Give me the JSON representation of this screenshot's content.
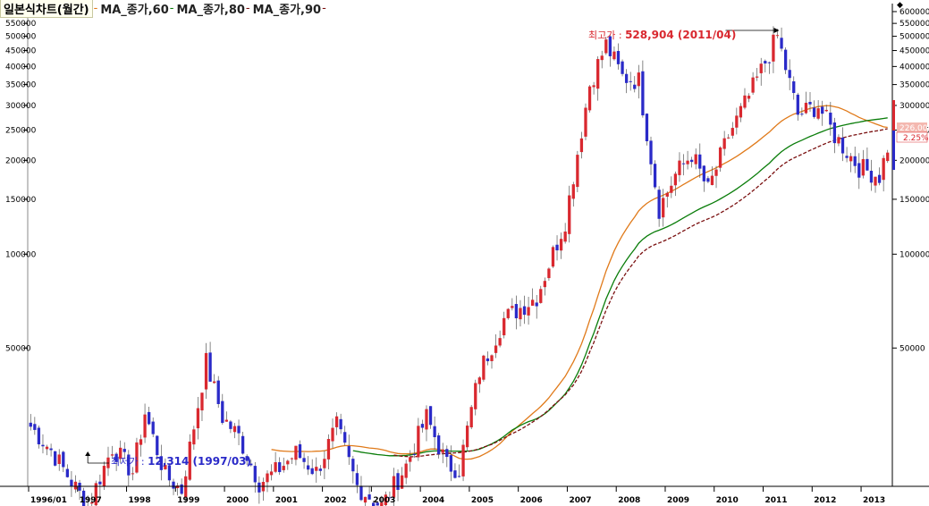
{
  "header": {
    "title": "일본식차트(월간)",
    "ma_labels": [
      "MA_종가,60",
      "MA_종가,80",
      "MA_종가,90"
    ],
    "ma_colors": [
      "#e07a1a",
      "#0a7d0a",
      "#7a1010"
    ]
  },
  "annotations": {
    "high_label": "최고가 : ",
    "high_value": "528,904 (2011/04)",
    "low_label": "최저가 : ",
    "low_value": "12,314 (1997/03)"
  },
  "price_tags": {
    "current": "226,000",
    "change": "2.25%"
  },
  "colors": {
    "up": "#d9282f",
    "down": "#2a2ac8",
    "ma60": "#e07a1a",
    "ma80": "#0a7d0a",
    "ma90": "#7a1010",
    "axis": "#000000",
    "high_text": "#d9282f",
    "low_text": "#2a2ac8"
  },
  "chart_data": {
    "type": "candlestick",
    "period": "monthly",
    "y_scale": "log",
    "ylim": [
      18000,
      620000
    ],
    "y_ticks": [
      50000,
      100000,
      150000,
      200000,
      250000,
      300000,
      350000,
      400000,
      450000,
      500000,
      550000,
      600000
    ],
    "y_tick_labels": [
      "50000",
      "100000",
      "150000",
      "200000",
      "250000",
      "300000",
      "350000",
      "400000",
      "450000",
      "500000",
      "550000",
      "600000"
    ],
    "x_tick_labels": [
      "1996/01",
      "1997",
      "1998",
      "1999",
      "2000",
      "2001",
      "2002",
      "2003",
      "2004",
      "2005",
      "2006",
      "2007",
      "2008",
      "2009",
      "2010",
      "2011",
      "2012",
      "2013"
    ],
    "start": "1996/01",
    "months": 211,
    "anchors": [
      {
        "date": "1996/01",
        "close": 28000
      },
      {
        "date": "1996/06",
        "close": 23500
      },
      {
        "date": "1997/03",
        "close": 15500
      },
      {
        "date": "1997/09",
        "close": 24000
      },
      {
        "date": "1998/02",
        "close": 20000
      },
      {
        "date": "1998/05",
        "close": 31000
      },
      {
        "date": "1998/10",
        "close": 19500
      },
      {
        "date": "1999/02",
        "close": 17500
      },
      {
        "date": "1999/08",
        "close": 45000
      },
      {
        "date": "1999/12",
        "close": 30000
      },
      {
        "date": "2000/04",
        "close": 26000
      },
      {
        "date": "2000/09",
        "close": 18500
      },
      {
        "date": "2001/01",
        "close": 20000
      },
      {
        "date": "2001/06",
        "close": 23000
      },
      {
        "date": "2001/11",
        "close": 20000
      },
      {
        "date": "2002/04",
        "close": 28000
      },
      {
        "date": "2002/09",
        "close": 18000
      },
      {
        "date": "2003/03",
        "close": 15500
      },
      {
        "date": "2003/09",
        "close": 21000
      },
      {
        "date": "2004/02",
        "close": 30000
      },
      {
        "date": "2004/07",
        "close": 21000
      },
      {
        "date": "2004/10",
        "close": 20500
      },
      {
        "date": "2005/03",
        "close": 42000
      },
      {
        "date": "2005/09",
        "close": 62000
      },
      {
        "date": "2006/05",
        "close": 73000
      },
      {
        "date": "2006/12",
        "close": 128000
      },
      {
        "date": "2007/06",
        "close": 350000
      },
      {
        "date": "2007/10",
        "close": 470000
      },
      {
        "date": "2008/02",
        "close": 370000
      },
      {
        "date": "2008/06",
        "close": 360000
      },
      {
        "date": "2008/11",
        "close": 140000
      },
      {
        "date": "2009/03",
        "close": 180000
      },
      {
        "date": "2009/07",
        "close": 210000
      },
      {
        "date": "2009/11",
        "close": 160000
      },
      {
        "date": "2010/04",
        "close": 240000
      },
      {
        "date": "2010/09",
        "close": 320000
      },
      {
        "date": "2011/04",
        "close": 500000
      },
      {
        "date": "2011/09",
        "close": 280000
      },
      {
        "date": "2012/02",
        "close": 300000
      },
      {
        "date": "2012/06",
        "close": 240000
      },
      {
        "date": "2012/12",
        "close": 190000
      },
      {
        "date": "2013/05",
        "close": 178000
      },
      {
        "date": "2013/07",
        "close": 221000
      }
    ],
    "high": {
      "value": 528904,
      "date": "2011/04"
    },
    "low": {
      "value": 12314,
      "date": "1997/03"
    },
    "moving_averages": [
      {
        "name": "MA_종가,60",
        "period": 60,
        "color": "#e07a1a",
        "style": "solid"
      },
      {
        "name": "MA_종가,80",
        "period": 80,
        "color": "#0a7d0a",
        "style": "solid"
      },
      {
        "name": "MA_종가,90",
        "period": 90,
        "color": "#7a1010",
        "style": "dashed"
      }
    ]
  }
}
